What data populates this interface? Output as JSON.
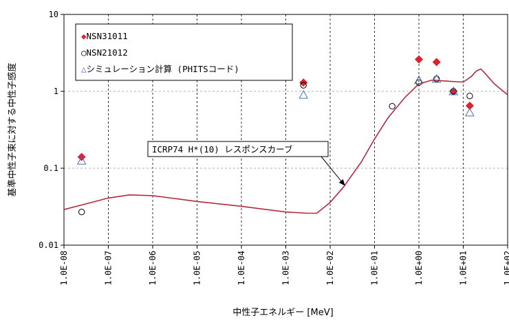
{
  "chart_data": {
    "type": "scatter",
    "title": "",
    "xlabel": "中性子エネルギー [MeV]",
    "ylabel": "基準中性子束に対する中性子感度",
    "xscale": "log",
    "yscale": "log",
    "xlim": [
      1e-08,
      100
    ],
    "ylim": [
      0.01,
      10
    ],
    "x_ticks": [
      {
        "value": 1e-08,
        "label": "1.0E-08"
      },
      {
        "value": 1e-07,
        "label": "1.0E-07"
      },
      {
        "value": 1e-06,
        "label": "1.0E-06"
      },
      {
        "value": 1e-05,
        "label": "1.0E-05"
      },
      {
        "value": 0.0001,
        "label": "1.0E-04"
      },
      {
        "value": 0.001,
        "label": "1.0E-03"
      },
      {
        "value": 0.01,
        "label": "1.0E-02"
      },
      {
        "value": 0.1,
        "label": "1.0E-01"
      },
      {
        "value": 1,
        "label": "1.0E+00"
      },
      {
        "value": 10,
        "label": "1.0E+01"
      },
      {
        "value": 100,
        "label": "1.0E+02"
      }
    ],
    "y_ticks": [
      {
        "value": 0.01,
        "label": "0.01"
      },
      {
        "value": 0.1,
        "label": "0.1"
      },
      {
        "value": 1,
        "label": "1"
      },
      {
        "value": 10,
        "label": "10"
      }
    ],
    "grid": true,
    "legend_position": "top-left",
    "series": [
      {
        "name": "◆NSN31011",
        "marker": "diamond",
        "color": "#e0202a",
        "points": [
          [
            2.5e-08,
            0.14
          ],
          [
            0.0025,
            1.3
          ],
          [
            1.0,
            2.6
          ],
          [
            2.5,
            2.4
          ],
          [
            6.0,
            1.0
          ],
          [
            14,
            0.65
          ]
        ]
      },
      {
        "name": "○NSN21012",
        "marker": "circle",
        "color": "#000000",
        "points": [
          [
            2.5e-08,
            0.027
          ],
          [
            0.25,
            0.64
          ],
          [
            0.0025,
            1.2
          ],
          [
            1.0,
            1.3
          ],
          [
            2.5,
            1.45
          ],
          [
            6.0,
            1.0
          ],
          [
            14,
            0.87
          ]
        ]
      },
      {
        "name": "△シミュレーション計算 (PHITSコード)",
        "marker": "triangle",
        "color": "#4a6fb5",
        "points": [
          [
            2.5e-08,
            0.125
          ],
          [
            0.0025,
            0.9
          ],
          [
            1.0,
            1.4
          ],
          [
            2.5,
            1.45
          ],
          [
            6.0,
            1.0
          ],
          [
            14,
            0.53
          ]
        ]
      },
      {
        "name": "ICRP74 H*(10) レスポンスカーブ",
        "marker": "line",
        "color": "#b22a3a",
        "points": [
          [
            1e-08,
            0.029
          ],
          [
            1e-07,
            0.041
          ],
          [
            3e-07,
            0.045
          ],
          [
            1e-06,
            0.044
          ],
          [
            1e-05,
            0.037
          ],
          [
            0.0001,
            0.032
          ],
          [
            0.001,
            0.027
          ],
          [
            0.003,
            0.026
          ],
          [
            0.005,
            0.026
          ],
          [
            0.01,
            0.036
          ],
          [
            0.02,
            0.057
          ],
          [
            0.05,
            0.12
          ],
          [
            0.1,
            0.24
          ],
          [
            0.2,
            0.45
          ],
          [
            0.5,
            0.85
          ],
          [
            1,
            1.25
          ],
          [
            2,
            1.4
          ],
          [
            5,
            1.35
          ],
          [
            10,
            1.32
          ],
          [
            15,
            1.55
          ],
          [
            20,
            1.85
          ],
          [
            25,
            1.95
          ],
          [
            30,
            1.75
          ],
          [
            50,
            1.25
          ],
          [
            100,
            0.9
          ]
        ]
      }
    ],
    "annotation": {
      "text": "ICRP74 H*(10) レスポンスカーブ",
      "target": [
        0.02,
        0.057
      ]
    }
  }
}
